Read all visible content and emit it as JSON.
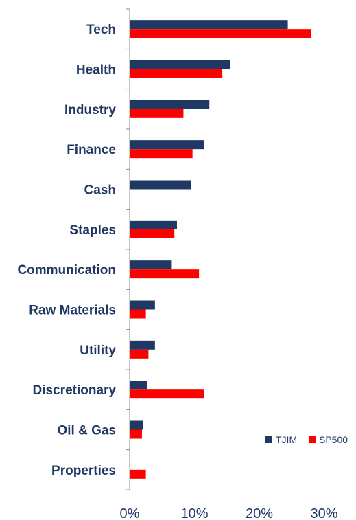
{
  "chart_data": {
    "type": "bar",
    "orientation": "horizontal",
    "categories": [
      "Tech",
      "Health",
      "Industry",
      "Finance",
      "Cash",
      "Staples",
      "Communication",
      "Raw Materials",
      "Utility",
      "Discretionary",
      "Oil & Gas",
      "Properties"
    ],
    "series": [
      {
        "name": "TJIM",
        "color": "#1f3864",
        "values": [
          24.4,
          15.5,
          12.3,
          11.5,
          9.5,
          7.3,
          6.5,
          3.9,
          3.9,
          2.7,
          2.1,
          null
        ]
      },
      {
        "name": "SP500",
        "color": "#ff0000",
        "values": [
          28.0,
          14.3,
          8.3,
          9.7,
          null,
          6.9,
          10.7,
          2.5,
          2.9,
          11.5,
          1.9,
          2.5
        ]
      }
    ],
    "xlim": [
      0,
      30
    ],
    "xticks": [
      0,
      10,
      20,
      30
    ],
    "xtick_labels": [
      "0%",
      "10%",
      "20%",
      "30%"
    ],
    "legend_position": "bottom-right",
    "grid": false
  }
}
